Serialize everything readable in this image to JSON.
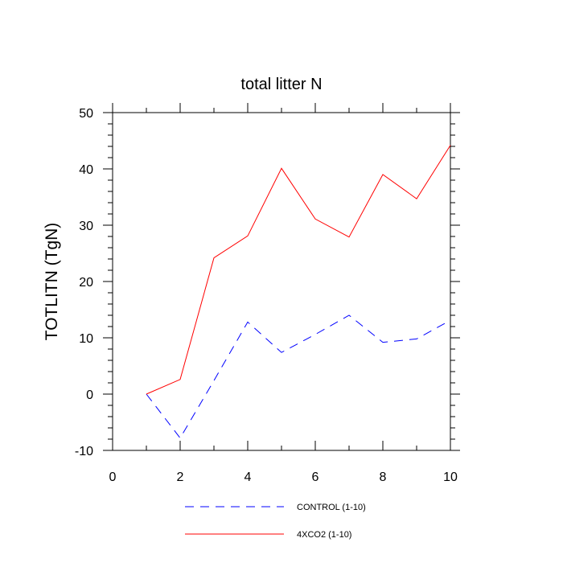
{
  "chart_data": {
    "type": "line",
    "title": "total litter N",
    "xlabel": "",
    "ylabel": "TOTLITN  (TgN)",
    "xlim": [
      0,
      10
    ],
    "ylim": [
      -10,
      50
    ],
    "xticks": [
      0,
      2,
      4,
      6,
      8,
      10
    ],
    "yticks": [
      -10,
      0,
      10,
      20,
      30,
      40,
      50
    ],
    "x": [
      1,
      2,
      3,
      4,
      5,
      6,
      7,
      8,
      9,
      10
    ],
    "series": [
      {
        "name": "CONTROL (1-10)",
        "color": "#0000ff",
        "style": "dashed",
        "values": [
          0,
          -7.8,
          2.4,
          12.8,
          7.4,
          10.6,
          14.0,
          9.2,
          9.8,
          13.1
        ]
      },
      {
        "name": "4XCO2 (1-10)",
        "color": "#ff0000",
        "style": "solid",
        "values": [
          0,
          2.6,
          24.2,
          28.1,
          40.1,
          31.1,
          27.9,
          39.0,
          34.7,
          44.2
        ]
      }
    ],
    "legend_position": "bottom"
  }
}
